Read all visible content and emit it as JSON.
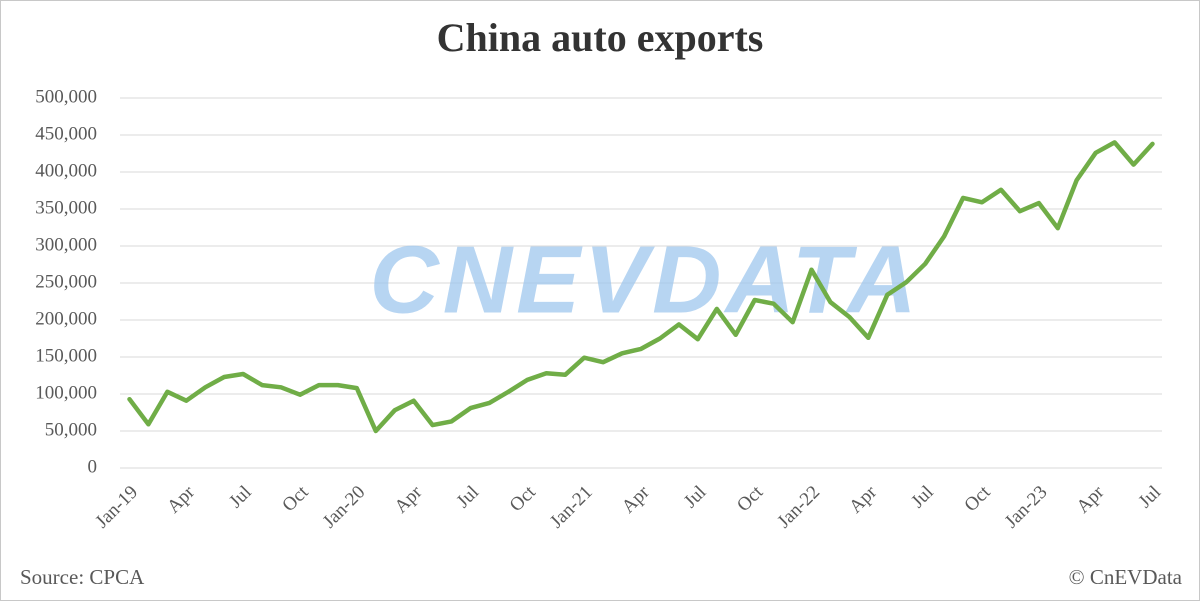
{
  "chart_data": {
    "type": "line",
    "title": "China auto exports",
    "categories": [
      "Jan-19",
      null,
      null,
      "Apr",
      null,
      null,
      "Jul",
      null,
      null,
      "Oct",
      null,
      null,
      "Jan-20",
      null,
      null,
      "Apr",
      null,
      null,
      "Jul",
      null,
      null,
      "Oct",
      null,
      null,
      "Jan-21",
      null,
      null,
      "Apr",
      null,
      null,
      "Jul",
      null,
      null,
      "Oct",
      null,
      null,
      "Jan-22",
      null,
      null,
      "Apr",
      null,
      null,
      "Jul",
      null,
      null,
      "Oct",
      null,
      null,
      "Jan-23",
      null,
      null,
      "Apr",
      null,
      null,
      "Jul"
    ],
    "values": [
      93000,
      59000,
      103000,
      91000,
      109000,
      123000,
      127000,
      112000,
      109000,
      99000,
      112000,
      112000,
      108000,
      50000,
      78000,
      91000,
      58000,
      63000,
      81000,
      88000,
      103000,
      119000,
      128000,
      126000,
      149000,
      143000,
      155000,
      161000,
      175000,
      194000,
      174000,
      215000,
      180000,
      227000,
      222000,
      197000,
      268000,
      224000,
      204000,
      176000,
      234000,
      251000,
      276000,
      313000,
      365000,
      359000,
      376000,
      347000,
      358000,
      324000,
      389000,
      426000,
      440000,
      410000,
      438000
    ],
    "color": "#70ad47",
    "ylim": [
      0,
      500000
    ],
    "yticks": [
      0,
      {
        "value": 50000,
        "label": "50,000"
      },
      {
        "value": 100000,
        "label": "100,000"
      },
      {
        "value": 150000,
        "label": "150,000"
      },
      {
        "value": 200000,
        "label": "200,000"
      },
      {
        "value": 250000,
        "label": "250,000"
      },
      {
        "value": 300000,
        "label": "300,000"
      },
      {
        "value": 350000,
        "label": "350,000"
      },
      {
        "value": 400000,
        "label": "400,000"
      },
      {
        "value": 450000,
        "label": "450,000"
      },
      {
        "value": 500000,
        "label": "500,000"
      }
    ],
    "grid": true,
    "watermark": "CNEVDATA",
    "source": "Source: CPCA",
    "credit": "© CnEVData"
  }
}
